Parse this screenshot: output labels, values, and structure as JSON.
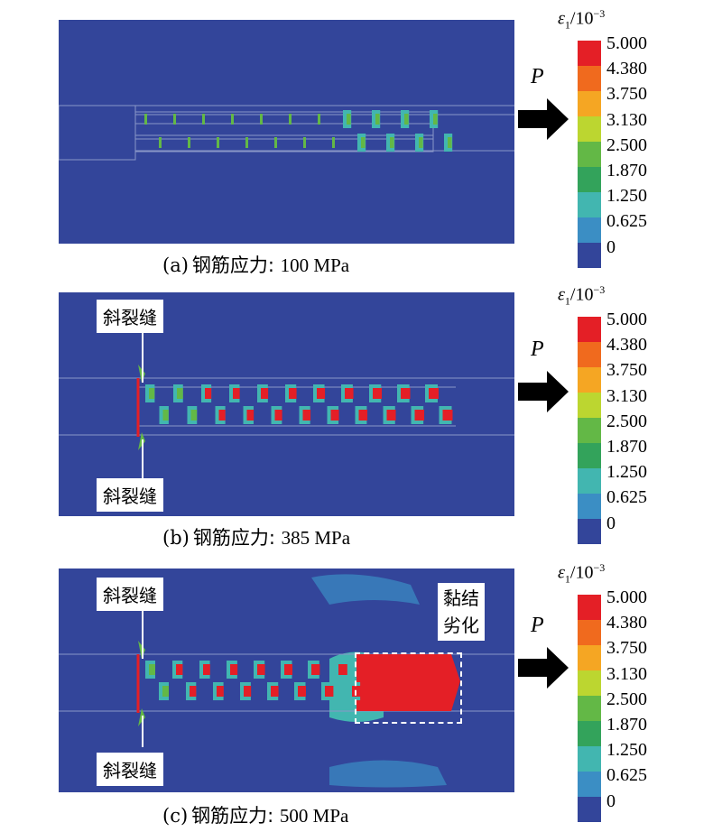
{
  "colorbar": {
    "title_symbol": "ε",
    "title_sub": "1",
    "title_rest": "/10",
    "title_sup": "−3",
    "ticks": [
      "5.000",
      "4.380",
      "3.750",
      "3.130",
      "2.500",
      "1.870",
      "1.250",
      "0.625",
      "0"
    ],
    "band_colors": [
      "#e41f26",
      "#f06a1e",
      "#f5a623",
      "#bcd630",
      "#63b846",
      "#33a35b",
      "#42b6b0",
      "#3b8ec4",
      "#33459a"
    ]
  },
  "force_label": "P",
  "panels": [
    {
      "id": "a",
      "letter": "(a)",
      "caption_text": "钢筋应力: ",
      "caption_value": "100 MPa",
      "labels": []
    },
    {
      "id": "b",
      "letter": "(b)",
      "caption_text": "钢筋应力: ",
      "caption_value": "385 MPa",
      "labels": [
        "斜裂缝",
        "斜裂缝"
      ]
    },
    {
      "id": "c",
      "letter": "(c)",
      "caption_text": "钢筋应力: ",
      "caption_value": "500 MPa",
      "labels": [
        "斜裂缝",
        "斜裂缝"
      ],
      "bond_label_line1": "黏结",
      "bond_label_line2": "劣化"
    }
  ],
  "colors": {
    "background": "#33459a",
    "high": "#e41f26",
    "mid": "#63b846",
    "low": "#42b6b0"
  }
}
